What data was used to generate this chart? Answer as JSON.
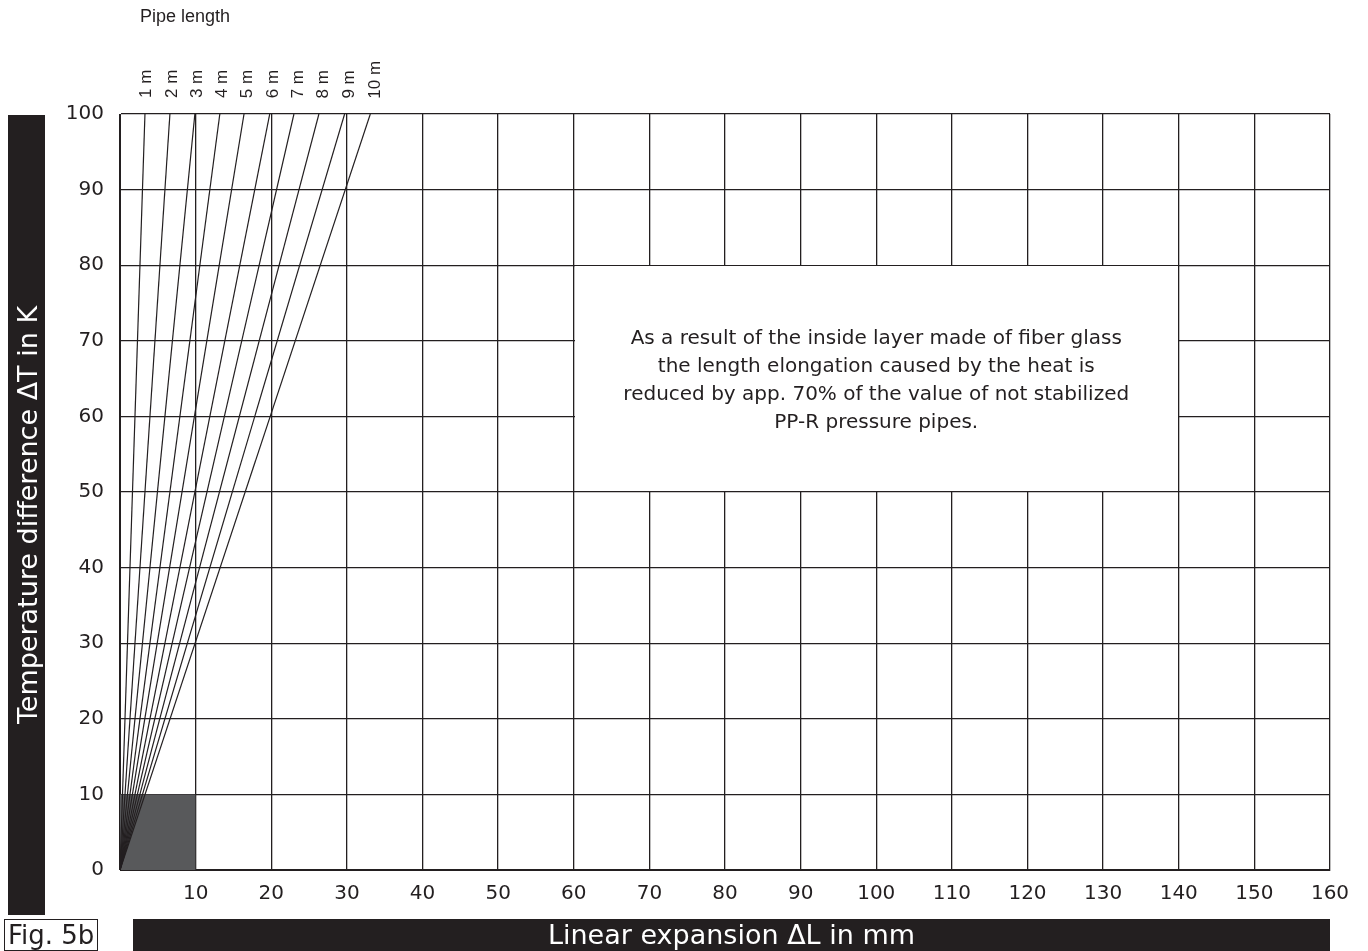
{
  "chart_data": {
    "type": "line",
    "xlabel": "Linear expansion ΔL in mm",
    "ylabel": "Temperature difference ΔT in K",
    "legend_title": "Pipe length",
    "annotations": [
      "As a result of the inside layer made of fiber glass the length elongation caused by the heat is reduced by app. 70% of the value of not stabilized PP-R pressure pipes.",
      "Fig. 5b"
    ],
    "xlim": [
      0,
      160
    ],
    "xticks": [
      {
        "value": 0,
        "label": null
      },
      10,
      20,
      30,
      40,
      50,
      60,
      70,
      80,
      90,
      100,
      110,
      120,
      130,
      140,
      150,
      160
    ],
    "ylim": [
      0,
      100
    ],
    "yticks": [
      0,
      10,
      20,
      30,
      40,
      50,
      60,
      70,
      80,
      90,
      100
    ],
    "grid": true,
    "legend": false,
    "marker": "none",
    "line_style": "solid",
    "series": [
      {
        "type": "area",
        "color": "#58595b",
        "x": [
          0,
          10
        ],
        "values": [
          10,
          10
        ]
      },
      {
        "name": "1 m",
        "color": "#231f20",
        "x": [
          0,
          3.3
        ],
        "values": [
          0,
          100
        ]
      },
      {
        "name": "2 m",
        "color": "#231f20",
        "x": [
          0,
          6.6
        ],
        "values": [
          0,
          100
        ]
      },
      {
        "name": "3 m",
        "color": "#231f20",
        "x": [
          0,
          9.9
        ],
        "values": [
          0,
          100
        ]
      },
      {
        "name": "4 m",
        "color": "#231f20",
        "x": [
          0,
          13.2
        ],
        "values": [
          0,
          100
        ]
      },
      {
        "name": "5 m",
        "color": "#231f20",
        "x": [
          0,
          16.4
        ],
        "values": [
          0,
          100
        ]
      },
      {
        "name": "6 m",
        "color": "#231f20",
        "x": [
          0,
          19.8
        ],
        "values": [
          0,
          100
        ]
      },
      {
        "name": "7 m",
        "color": "#231f20",
        "x": [
          0,
          23
        ],
        "values": [
          0,
          100
        ]
      },
      {
        "name": "8 m",
        "color": "#231f20",
        "x": [
          0,
          26.3
        ],
        "values": [
          0,
          100
        ]
      },
      {
        "name": "9 m",
        "color": "#231f20",
        "x": [
          0,
          29.7
        ],
        "values": [
          0,
          100
        ]
      },
      {
        "name": "10 m",
        "color": "#231f20",
        "x": [
          0,
          33.1
        ],
        "values": [
          0,
          100
        ]
      }
    ]
  }
}
